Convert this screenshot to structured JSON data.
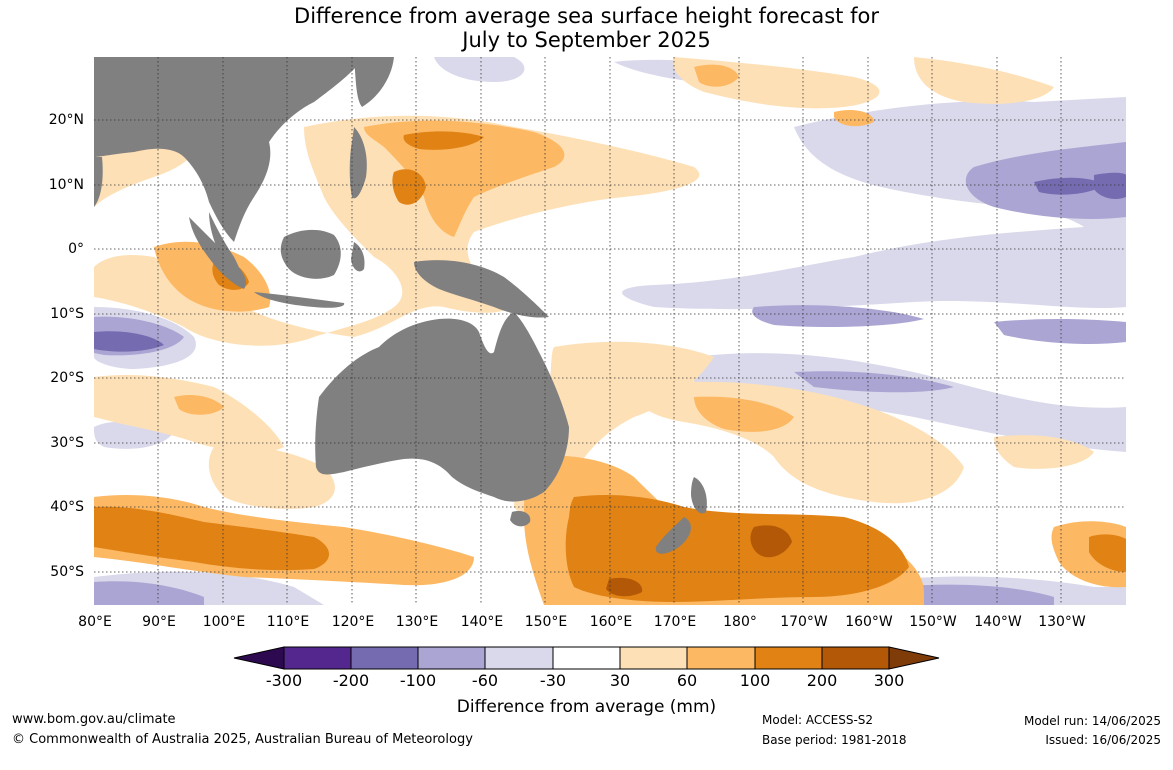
{
  "title": {
    "line1": "Difference from average sea surface height forecast for",
    "line2": "July to September 2025"
  },
  "map": {
    "region": "Indo-Pacific",
    "land_color": "#808080",
    "ocean_color": "#ffffff",
    "gridlines": "dotted",
    "lat_labels": [
      "20°N",
      "10°N",
      "0°",
      "10°S",
      "20°S",
      "30°S",
      "40°S",
      "50°S"
    ],
    "lon_labels": [
      "80°E",
      "90°E",
      "100°E",
      "110°E",
      "120°E",
      "130°E",
      "140°E",
      "150°E",
      "160°E",
      "170°E",
      "180°",
      "170°W",
      "160°W",
      "150°W",
      "140°W",
      "130°W"
    ]
  },
  "colorbar": {
    "label": "Difference from average (mm)",
    "ticks": [
      "-300",
      "-200",
      "-100",
      "-60",
      "-30",
      "30",
      "60",
      "100",
      "200",
      "300"
    ],
    "colors": [
      "#2d0a4f",
      "#54278f",
      "#756bb1",
      "#aba5d3",
      "#d9d9eb",
      "#ffffff",
      "#fee0b6",
      "#fdb863",
      "#e08214",
      "#b35806",
      "#7f3b08"
    ]
  },
  "footer": {
    "website": "www.bom.gov.au/climate",
    "copyright": "© Commonwealth of Australia 2025, Australian Bureau of Meteorology",
    "model": "Model: ACCESS-S2",
    "base_period": "Base period: 1981-2018",
    "model_run": "Model run: 14/06/2025",
    "issued": "Issued: 16/06/2025"
  }
}
